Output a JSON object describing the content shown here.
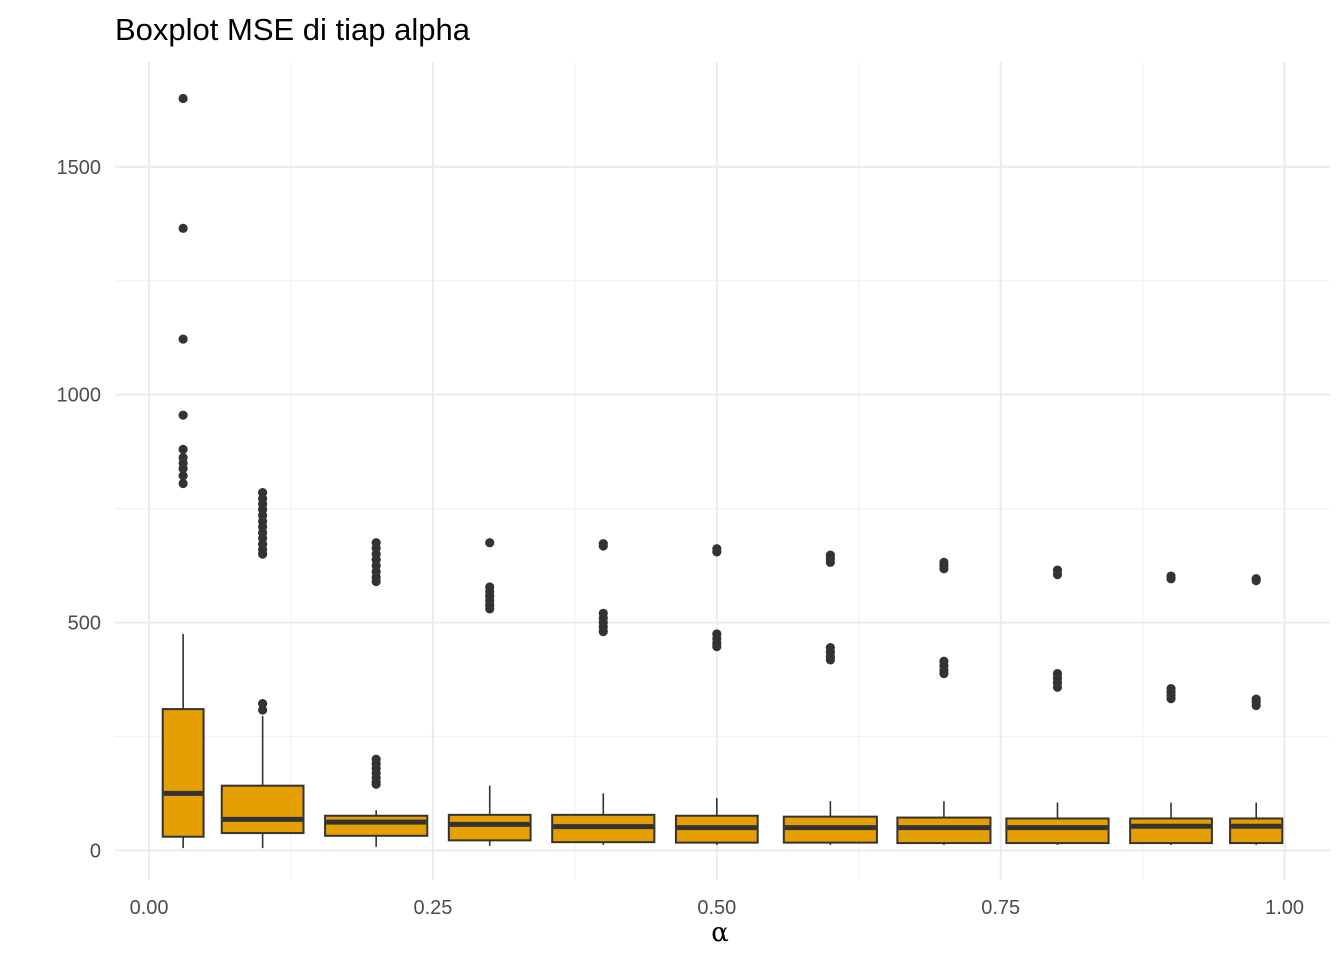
{
  "chart_data": {
    "type": "boxplot",
    "title": "Boxplot MSE di tiap alpha",
    "xlabel": "α",
    "ylabel": "",
    "xlim": [
      -0.03,
      1.04
    ],
    "ylim": [
      -65,
      1730
    ],
    "x_ticks": [
      0.0,
      0.25,
      0.5,
      0.75,
      1.0
    ],
    "x_tick_labels": [
      "0.00",
      "0.25",
      "0.50",
      "0.75",
      "1.00"
    ],
    "y_ticks": [
      0,
      500,
      1000,
      1500
    ],
    "y_tick_labels": [
      "0",
      "500",
      "1000",
      "1500"
    ],
    "grid": true,
    "fill_color": "#E69F00",
    "line_color": "#333333",
    "boxes": [
      {
        "alpha": 0.03,
        "half_width": 0.018,
        "min": 5,
        "q1": 30,
        "median": 125,
        "q3": 310,
        "max": 475,
        "outliers": [
          1650,
          1365,
          1122,
          955,
          880,
          862,
          850,
          838,
          822,
          805
        ]
      },
      {
        "alpha": 0.1,
        "half_width": 0.036,
        "min": 5,
        "q1": 38,
        "median": 68,
        "q3": 142,
        "max": 295,
        "outliers": [
          322,
          308,
          785,
          772,
          760,
          748,
          735,
          722,
          710,
          697,
          685,
          672,
          660,
          650
        ]
      },
      {
        "alpha": 0.2,
        "half_width": 0.045,
        "min": 8,
        "q1": 32,
        "median": 62,
        "q3": 76,
        "max": 88,
        "outliers": [
          675,
          663,
          650,
          638,
          625,
          612,
          600,
          590,
          200,
          190,
          180,
          170,
          160,
          150,
          145
        ]
      },
      {
        "alpha": 0.3,
        "half_width": 0.036,
        "min": 10,
        "q1": 22,
        "median": 57,
        "q3": 78,
        "max": 142,
        "outliers": [
          675,
          578,
          568,
          558,
          548,
          538,
          530
        ]
      },
      {
        "alpha": 0.4,
        "half_width": 0.045,
        "min": 12,
        "q1": 18,
        "median": 52,
        "q3": 78,
        "max": 125,
        "outliers": [
          673,
          668,
          520,
          510,
          500,
          490,
          480
        ]
      },
      {
        "alpha": 0.5,
        "half_width": 0.036,
        "min": 12,
        "q1": 17,
        "median": 50,
        "q3": 76,
        "max": 115,
        "outliers": [
          662,
          655,
          475,
          465,
          455,
          447
        ]
      },
      {
        "alpha": 0.6,
        "half_width": 0.041,
        "min": 12,
        "q1": 17,
        "median": 50,
        "q3": 74,
        "max": 108,
        "outliers": [
          648,
          640,
          632,
          445,
          435,
          425,
          418
        ]
      },
      {
        "alpha": 0.7,
        "half_width": 0.041,
        "min": 12,
        "q1": 16,
        "median": 50,
        "q3": 72,
        "max": 108,
        "outliers": [
          632,
          625,
          618,
          415,
          405,
          395,
          388
        ]
      },
      {
        "alpha": 0.8,
        "half_width": 0.045,
        "min": 12,
        "q1": 16,
        "median": 50,
        "q3": 70,
        "max": 105,
        "outliers": [
          615,
          605,
          388,
          378,
          368,
          358
        ]
      },
      {
        "alpha": 0.9,
        "half_width": 0.036,
        "min": 12,
        "q1": 16,
        "median": 53,
        "q3": 70,
        "max": 105,
        "outliers": [
          602,
          596,
          355,
          347,
          340,
          333
        ]
      },
      {
        "alpha": 0.975,
        "half_width": 0.023,
        "min": 12,
        "q1": 16,
        "median": 53,
        "q3": 70,
        "max": 105,
        "outliers": [
          596,
          592,
          332,
          325,
          318
        ]
      }
    ]
  }
}
